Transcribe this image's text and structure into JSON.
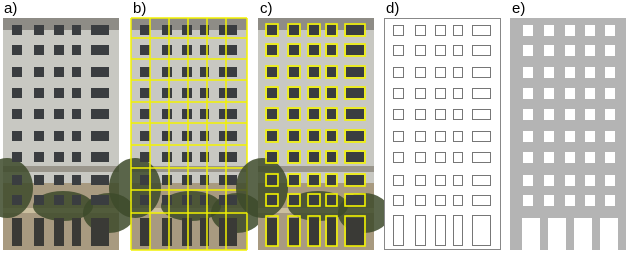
{
  "panels": [
    {
      "label": "a)"
    },
    {
      "label": "b)"
    },
    {
      "label": "c)"
    },
    {
      "label": "d)"
    },
    {
      "label": "e)"
    }
  ]
}
